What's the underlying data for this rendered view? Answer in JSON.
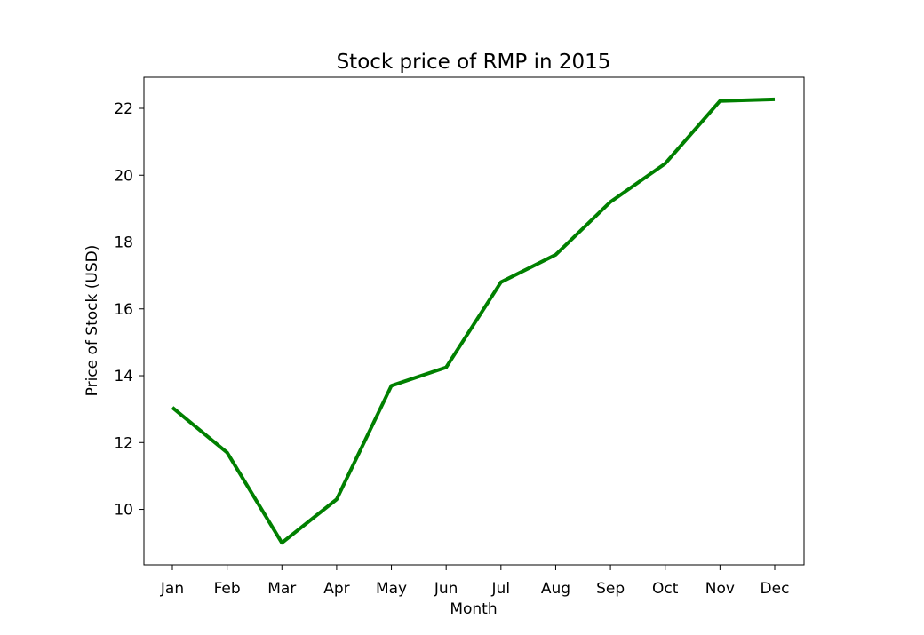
{
  "chart_data": {
    "type": "line",
    "title": "Stock price of RMP in 2015",
    "xlabel": "Month",
    "ylabel": "Price of Stock (USD)",
    "categories": [
      "Jan",
      "Feb",
      "Mar",
      "Apr",
      "May",
      "Jun",
      "Jul",
      "Aug",
      "Sep",
      "Oct",
      "Nov",
      "Dec"
    ],
    "series": [
      {
        "values": [
          13.05,
          11.7,
          9.0,
          10.3,
          13.7,
          14.25,
          16.8,
          17.62,
          19.2,
          20.35,
          22.22,
          22.27
        ],
        "color": "#008000"
      }
    ],
    "yticks": [
      10,
      12,
      14,
      16,
      18,
      20,
      22
    ],
    "ytick_labels": [
      "10",
      "12",
      "14",
      "16",
      "18",
      "20",
      "22"
    ],
    "ylim": [
      8.34,
      22.93
    ],
    "grid": false,
    "legend": false
  }
}
